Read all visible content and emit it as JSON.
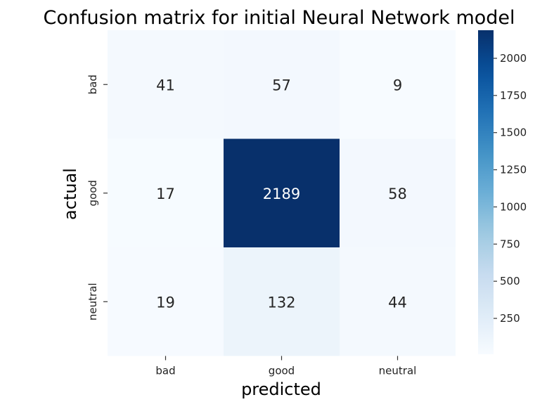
{
  "chart_data": {
    "type": "heatmap",
    "title": "Confusion matrix for initial Neural Network model",
    "xlabel": "predicted",
    "ylabel": "actual",
    "x_categories": [
      "bad",
      "good",
      "neutral"
    ],
    "y_categories": [
      "bad",
      "good",
      "neutral"
    ],
    "values": [
      [
        41,
        57,
        9
      ],
      [
        17,
        2189,
        58
      ],
      [
        19,
        132,
        44
      ]
    ],
    "colormap": "Blues",
    "color_range": [
      9,
      2189
    ],
    "colorbar_ticks": [
      250,
      500,
      750,
      1000,
      1250,
      1500,
      1750,
      2000
    ],
    "grid": false
  }
}
